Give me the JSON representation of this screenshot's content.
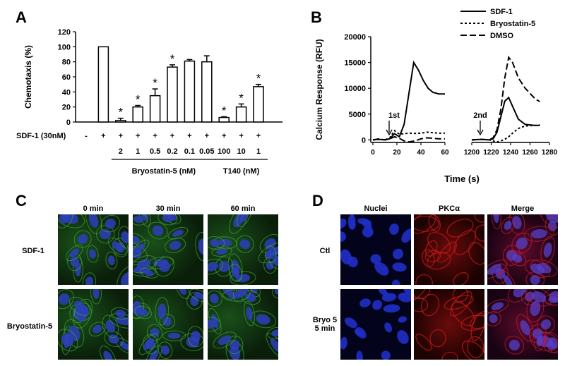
{
  "panels": {
    "a": "A",
    "b": "B",
    "c": "C",
    "d": "D"
  },
  "chart_data": [
    {
      "type": "bar",
      "ylabel": "Chemotaxis (%)",
      "ylim": [
        0,
        120
      ],
      "yticks": [
        "0",
        "20",
        "40",
        "60",
        "80",
        "100",
        "120"
      ],
      "row_label": "SDF-1 (30nM)",
      "row_signs": [
        "-",
        "+",
        "+",
        "+",
        "+",
        "+",
        "+",
        "+",
        "+",
        "+",
        "+"
      ],
      "categories": [
        "",
        "",
        "2",
        "1",
        "0.5",
        "0.2",
        "0.1",
        "0.05",
        "100",
        "10",
        "1"
      ],
      "values": [
        0,
        100,
        2,
        20,
        35,
        73,
        81,
        80,
        6,
        20,
        47
      ],
      "errors": [
        0,
        0,
        3,
        2,
        9,
        3,
        2,
        8,
        1,
        4,
        3
      ],
      "significant": [
        false,
        false,
        true,
        true,
        true,
        true,
        false,
        false,
        true,
        true,
        true
      ],
      "sig_marker": "*",
      "group_labels": [
        "Bryostatin-5 (nM)",
        "T140 (nM)"
      ]
    },
    {
      "type": "line",
      "ylabel": "Calcium Response (RFU)",
      "xlabel": "Time (s)",
      "ylim": [
        -500,
        20000
      ],
      "yticks": [
        "0",
        "5000",
        "10000",
        "15000",
        "20000"
      ],
      "xticks_left": [
        "0",
        "20",
        "40",
        "60"
      ],
      "xticks_right": [
        "1200",
        "1220",
        "1240",
        "1260",
        "1280"
      ],
      "annotations": [
        "1st",
        "2nd"
      ],
      "series": [
        {
          "name": "SDF-1",
          "x1": [
            0,
            5,
            10,
            14,
            18,
            22,
            26,
            30,
            34,
            38,
            42,
            46,
            50,
            55,
            60
          ],
          "y1": [
            0,
            100,
            0,
            200,
            1200,
            600,
            3000,
            9000,
            15000,
            13500,
            11500,
            10000,
            9200,
            8900,
            8900
          ],
          "x2": [
            1200,
            1210,
            1218,
            1222,
            1226,
            1230,
            1234,
            1238,
            1242,
            1248,
            1255,
            1265,
            1270
          ],
          "y2": [
            0,
            100,
            0,
            200,
            1500,
            4500,
            7500,
            8200,
            6500,
            4000,
            3000,
            2800,
            2800
          ]
        },
        {
          "name": "Bryostatin-5",
          "x1": [
            0,
            5,
            10,
            14,
            18,
            22,
            26,
            30,
            35,
            40,
            45,
            50,
            55,
            60
          ],
          "y1": [
            0,
            100,
            0,
            400,
            1800,
            1100,
            1200,
            1300,
            1250,
            1300,
            1500,
            1400,
            1300,
            1300
          ],
          "x2": [
            1200,
            1210,
            1218,
            1222,
            1226,
            1230,
            1234,
            1238,
            1242,
            1248,
            1255,
            1265,
            1270
          ],
          "y2": [
            0,
            100,
            0,
            -200,
            -400,
            -200,
            100,
            600,
            1300,
            2200,
            2700,
            2800,
            2900
          ]
        },
        {
          "name": "DMSO",
          "x1": [
            0,
            5,
            10,
            14,
            18,
            22,
            26,
            30,
            35,
            40,
            45,
            50,
            55,
            60
          ],
          "y1": [
            0,
            200,
            0,
            200,
            600,
            300,
            -200,
            -400,
            -200,
            200,
            400,
            300,
            200,
            200
          ],
          "x2": [
            1200,
            1210,
            1218,
            1222,
            1226,
            1230,
            1234,
            1238,
            1242,
            1248,
            1255,
            1265,
            1270
          ],
          "y2": [
            0,
            100,
            0,
            400,
            2000,
            6000,
            12000,
            16000,
            15000,
            12000,
            10000,
            8000,
            7400
          ]
        }
      ]
    }
  ],
  "panel_c": {
    "columns": [
      "0 min",
      "30 min",
      "60 min"
    ],
    "rows": [
      "SDF-1",
      "Bryostatin-5"
    ]
  },
  "panel_d": {
    "columns": [
      "Nuclei",
      "PKCα",
      "Merge"
    ],
    "rows": [
      "Ctl",
      "Bryo 5\n5 min"
    ],
    "row2_line1": "Bryo 5",
    "row2_line2": "5 min"
  }
}
